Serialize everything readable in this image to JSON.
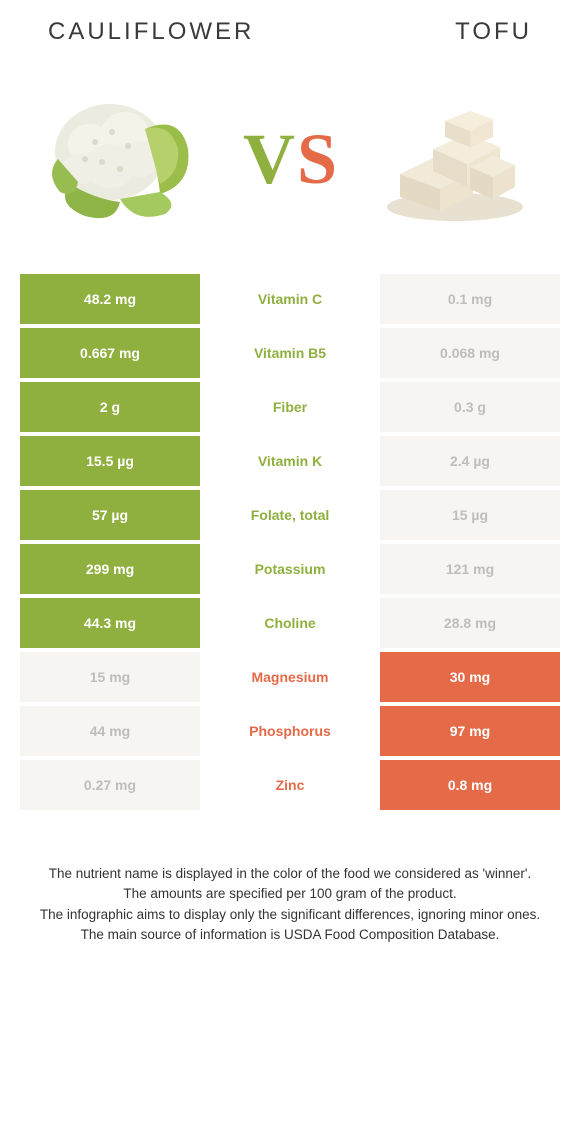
{
  "colors": {
    "green": "#8fb03e",
    "orange": "#e46a48",
    "left_dim": "#f7f5f1",
    "right_dim": "#f7f5f1",
    "text_dim": "#bdbdbd"
  },
  "header": {
    "left_title": "CAULIFLOWER",
    "right_title": "TOFU"
  },
  "vs": {
    "v": "V",
    "s": "S"
  },
  "rows": [
    {
      "name": "Vitamin C",
      "left": "48.2 mg",
      "right": "0.1 mg",
      "winner": "left"
    },
    {
      "name": "Vitamin B5",
      "left": "0.667 mg",
      "right": "0.068 mg",
      "winner": "left"
    },
    {
      "name": "Fiber",
      "left": "2 g",
      "right": "0.3 g",
      "winner": "left"
    },
    {
      "name": "Vitamin K",
      "left": "15.5 µg",
      "right": "2.4 µg",
      "winner": "left"
    },
    {
      "name": "Folate, total",
      "left": "57 µg",
      "right": "15 µg",
      "winner": "left"
    },
    {
      "name": "Potassium",
      "left": "299 mg",
      "right": "121 mg",
      "winner": "left"
    },
    {
      "name": "Choline",
      "left": "44.3 mg",
      "right": "28.8 mg",
      "winner": "left"
    },
    {
      "name": "Magnesium",
      "left": "15 mg",
      "right": "30 mg",
      "winner": "right"
    },
    {
      "name": "Phosphorus",
      "left": "44 mg",
      "right": "97 mg",
      "winner": "right"
    },
    {
      "name": "Zinc",
      "left": "0.27 mg",
      "right": "0.8 mg",
      "winner": "right"
    }
  ],
  "footer": {
    "line1": "The nutrient name is displayed in the color of the food we considered as 'winner'.",
    "line2": "The amounts are specified per 100 gram of the product.",
    "line3": "The infographic aims to display only the significant differences, ignoring minor ones.",
    "line4": "The main source of information is USDA Food Composition Database."
  }
}
